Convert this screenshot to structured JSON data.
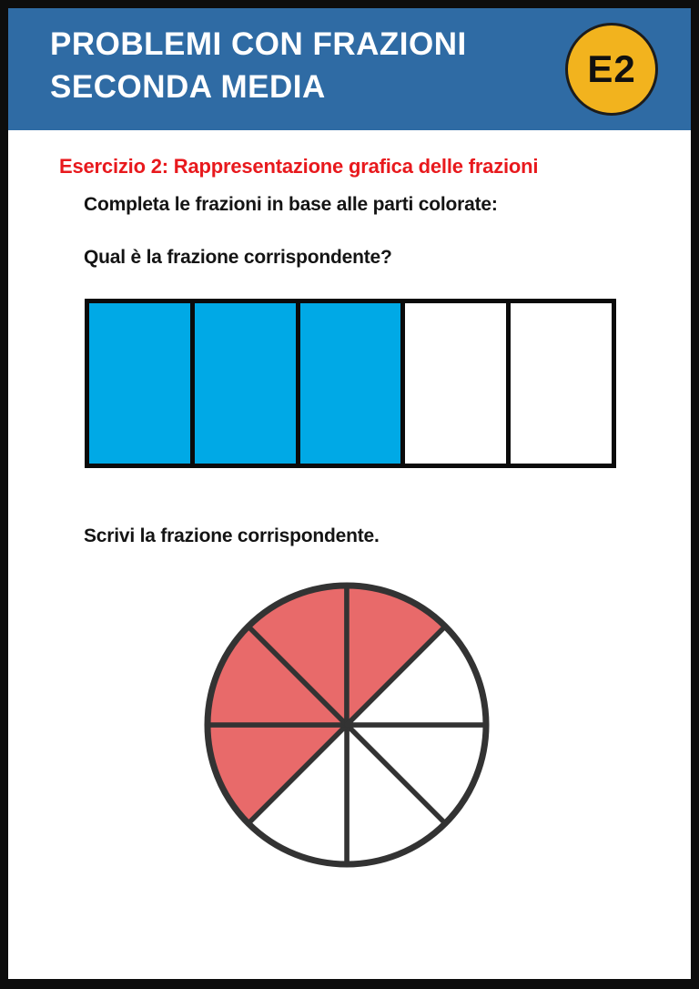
{
  "header": {
    "title_line1": "PROBLEMI CON FRAZIONI",
    "title_line2": "SECONDA MEDIA",
    "badge_label": "E2"
  },
  "exercise": {
    "heading": "Esercizio 2: Rappresentazione grafica delle frazioni",
    "instruction": "Completa le frazioni in base alle parti colorate:",
    "question_bar": "Qual è la frazione corrispondente?",
    "question_pie": "Scrivi la frazione corrispondente."
  },
  "colors": {
    "header_bg": "#2F6BA4",
    "badge_bg": "#F2B31E",
    "heading_red": "#E8191D",
    "bar_fill": "#00A9E6",
    "pie_fill": "#E86A6A",
    "diagram_stroke": "#333333",
    "frame_black": "#0D0D0D"
  },
  "chart_data": [
    {
      "type": "fraction-bar",
      "total_parts": 5,
      "filled_parts": 3,
      "filled_indexes": [
        0,
        1,
        2
      ],
      "fraction_shown": "3/5",
      "fill_color": "#00A9E6",
      "empty_color": "#FFFFFF"
    },
    {
      "type": "fraction-pie",
      "total_parts": 8,
      "filled_parts": 4,
      "filled_indexes": [
        3,
        4,
        5,
        6
      ],
      "fraction_shown": "4/8",
      "slice_angle_deg": 45,
      "start_angle_deg": 0,
      "fill_color": "#E86A6A",
      "empty_color": "#FFFFFF",
      "stroke_color": "#333333"
    }
  ]
}
